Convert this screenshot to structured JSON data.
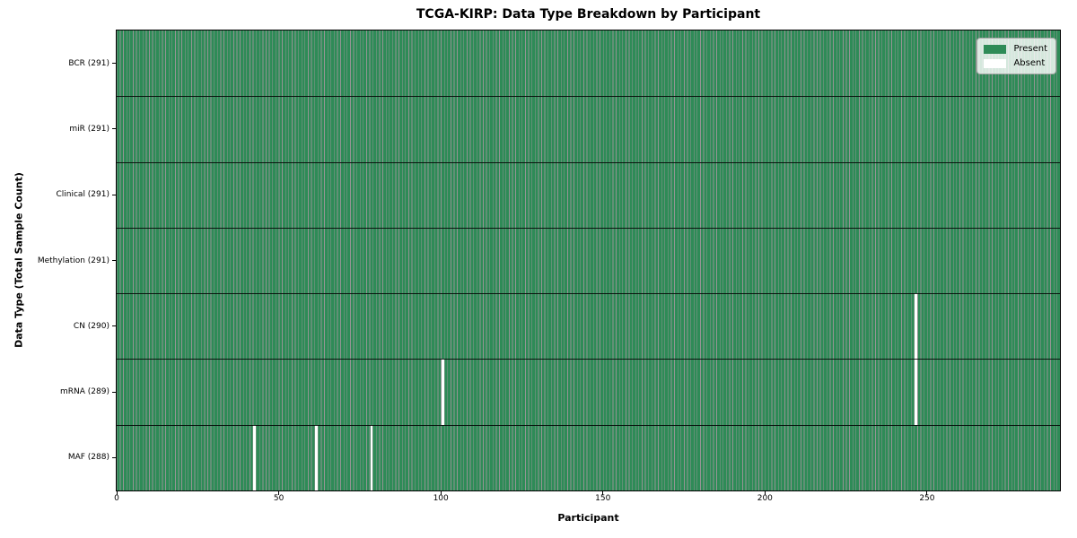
{
  "chart_data": {
    "type": "heatmap",
    "title": "TCGA-KIRP: Data Type Breakdown by Participant",
    "xlabel": "Participant",
    "ylabel": "Data Type (Total Sample Count)",
    "n_participants": 291,
    "xlim": [
      0,
      291
    ],
    "x_ticks": [
      0,
      50,
      100,
      150,
      200,
      250
    ],
    "grid": "row-dividers",
    "rows": [
      {
        "name": "BCR",
        "label": "BCR (291)",
        "count": 291,
        "absent_participants": []
      },
      {
        "name": "miR",
        "label": "miR (291)",
        "count": 291,
        "absent_participants": []
      },
      {
        "name": "Clinical",
        "label": "Clinical (291)",
        "count": 291,
        "absent_participants": []
      },
      {
        "name": "Methylation",
        "label": "Methylation (291)",
        "count": 291,
        "absent_participants": []
      },
      {
        "name": "CN",
        "label": "CN (290)",
        "count": 290,
        "absent_participants": [
          246
        ]
      },
      {
        "name": "mRNA",
        "label": "mRNA (289)",
        "count": 289,
        "absent_participants": [
          100,
          246
        ]
      },
      {
        "name": "MAF",
        "label": "MAF (288)",
        "count": 288,
        "absent_participants": [
          42,
          61,
          78
        ]
      }
    ],
    "colors": {
      "present": "#2e8b57",
      "absent": "#ffffff",
      "cell_edge": "rgba(0,0,0,0.42)",
      "row_divider": "#000000"
    },
    "legend": {
      "position": "upper right",
      "items": [
        {
          "label": "Present",
          "color": "#2e8b57"
        },
        {
          "label": "Absent",
          "color": "#ffffff"
        }
      ]
    }
  }
}
